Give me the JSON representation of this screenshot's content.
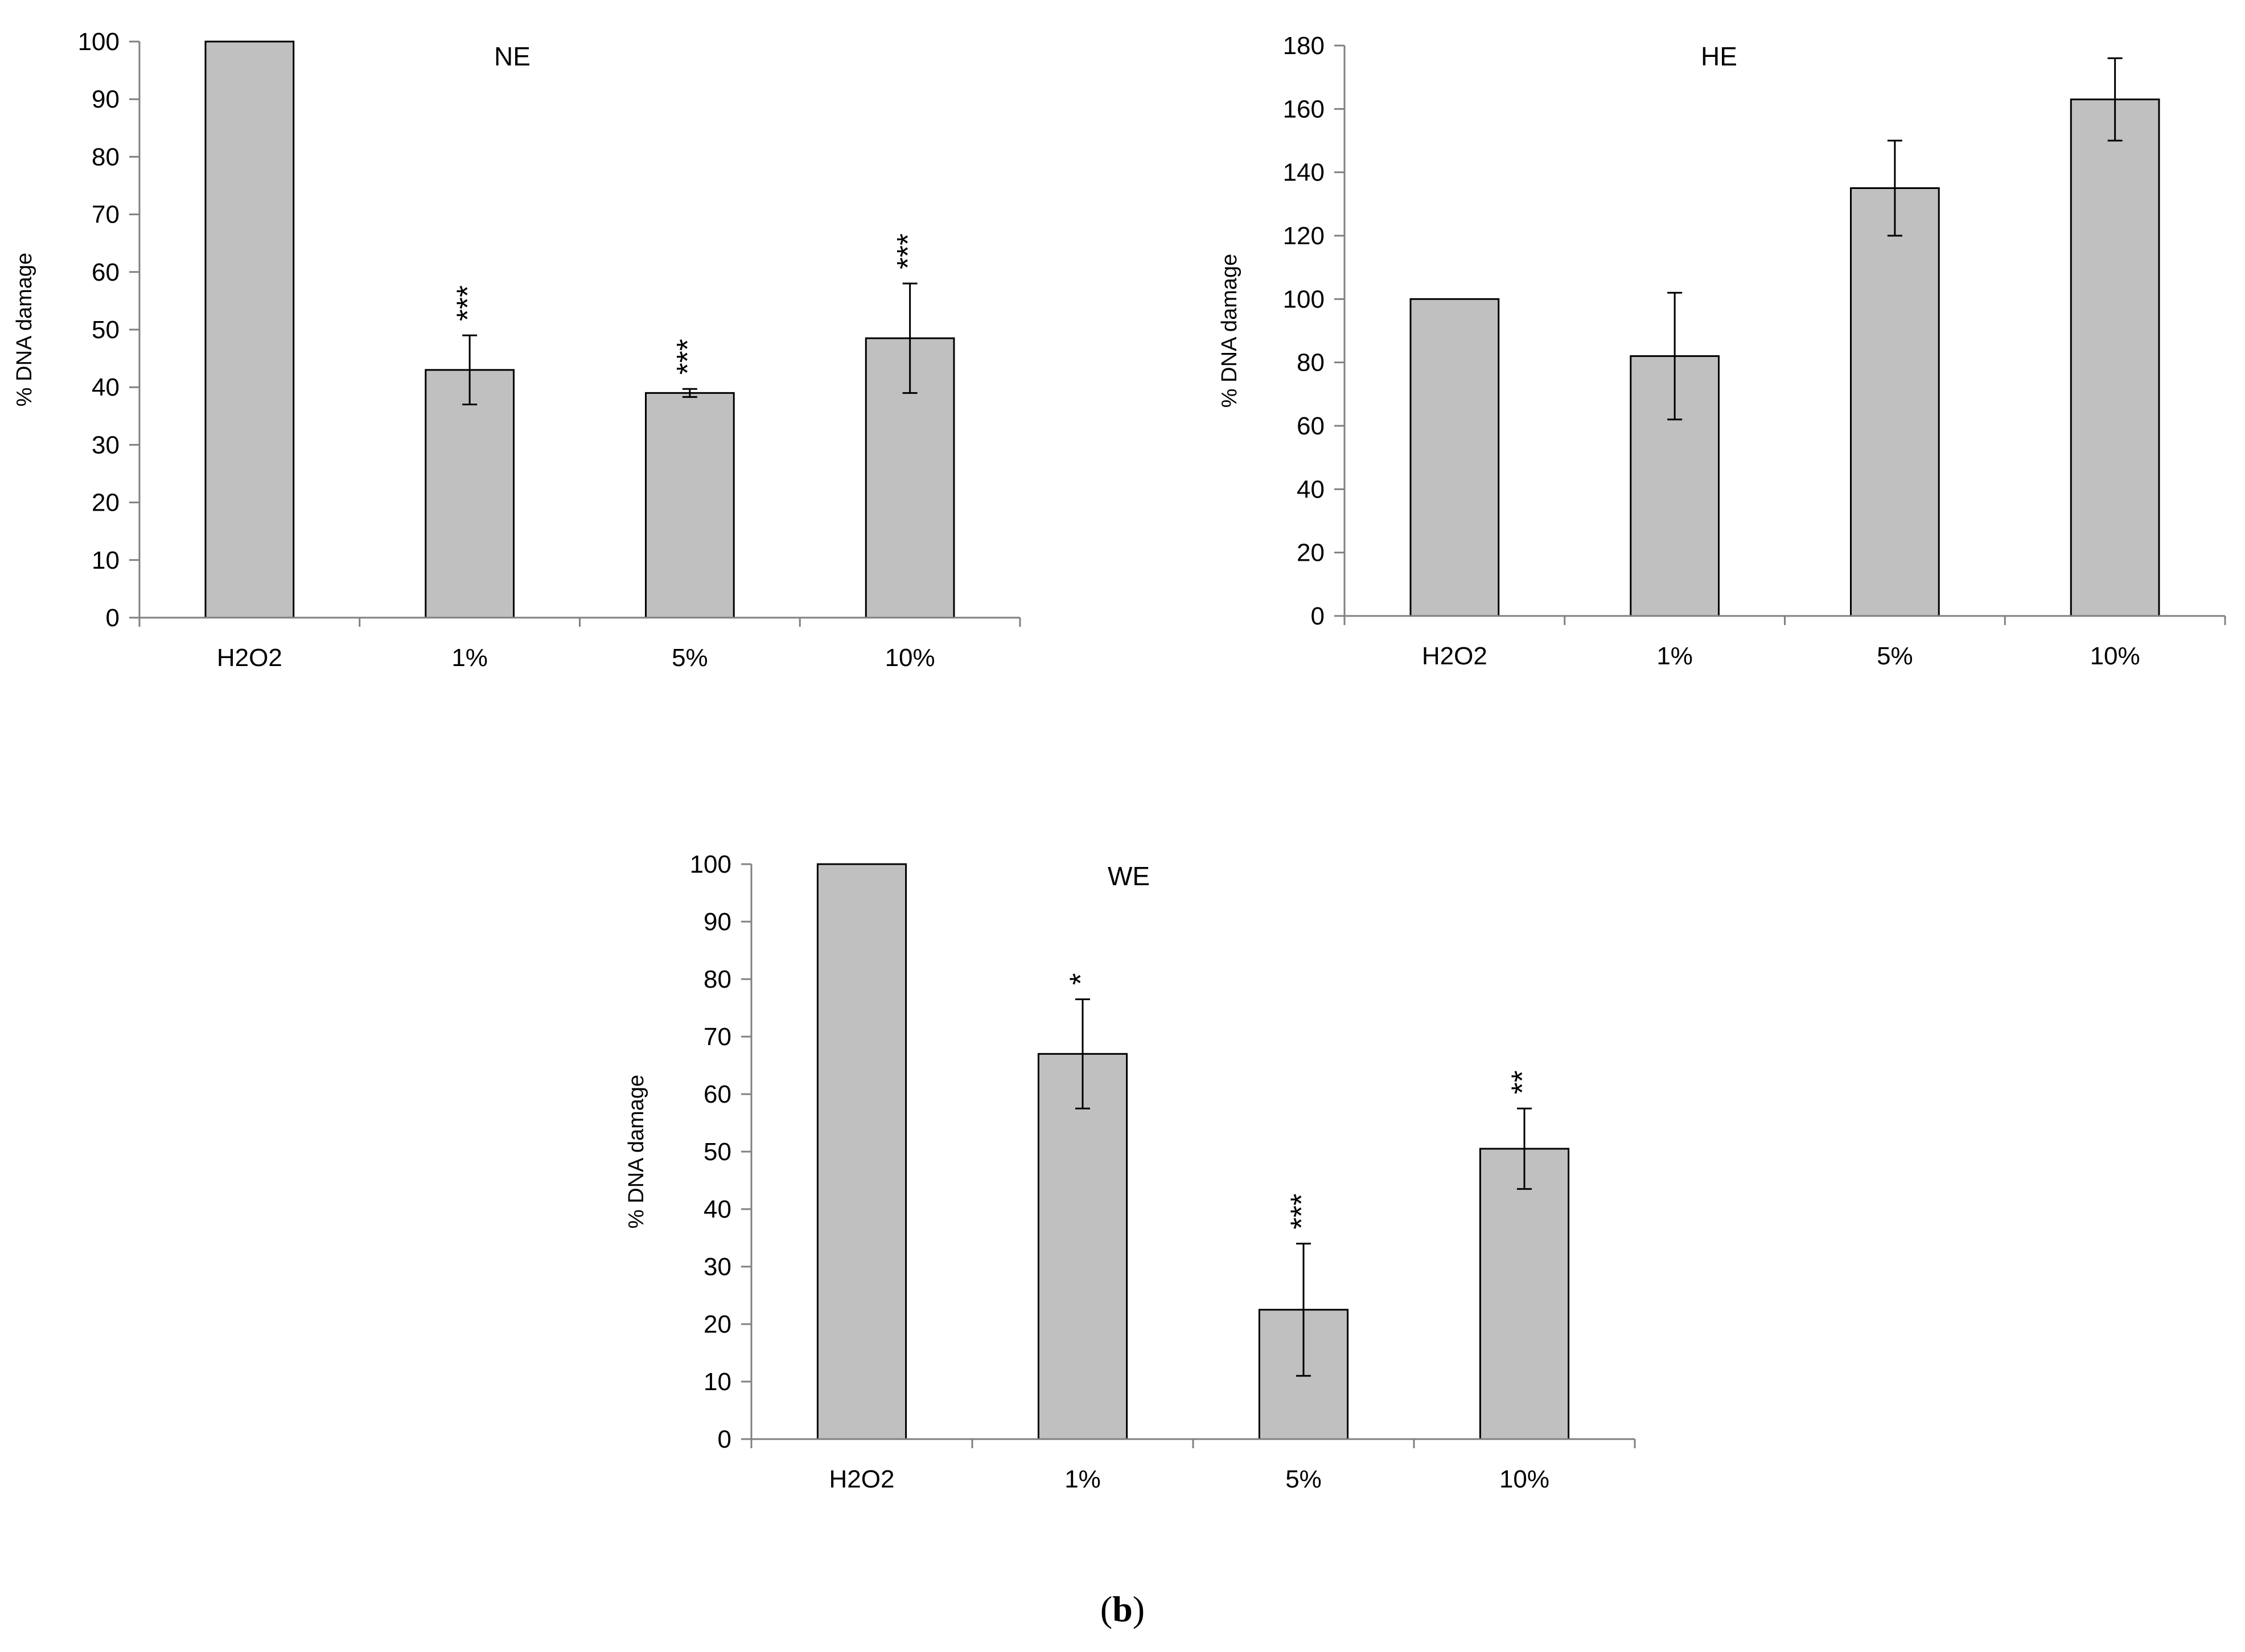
{
  "figure": {
    "caption_letter": "b",
    "caption_open": "(",
    "caption_close": ")"
  },
  "colors": {
    "bar_fill": "#c0c0c0",
    "bar_stroke": "#000000",
    "axis": "#808080",
    "text": "#000000"
  },
  "chart_data": [
    {
      "type": "bar",
      "title": "NE",
      "xlabel": "",
      "ylabel": "% DNA damage",
      "categories": [
        "H2O2",
        "1%",
        "5%",
        "10%"
      ],
      "values": [
        100,
        43,
        39,
        48.5
      ],
      "error": [
        0,
        6,
        0.7,
        9.5
      ],
      "significance": [
        "",
        "***",
        "***",
        "***"
      ],
      "ylim": [
        0,
        100
      ],
      "yticks": [
        0,
        10,
        20,
        30,
        40,
        50,
        60,
        70,
        80,
        90,
        100
      ],
      "grid": false,
      "legend": "none"
    },
    {
      "type": "bar",
      "title": "HE",
      "xlabel": "",
      "ylabel": "% DNA damage",
      "categories": [
        "H2O2",
        "1%",
        "5%",
        "10%"
      ],
      "values": [
        100,
        82,
        135,
        163
      ],
      "error": [
        0,
        20,
        15,
        13
      ],
      "significance": [
        "",
        "",
        "",
        ""
      ],
      "ylim": [
        0,
        180
      ],
      "yticks": [
        0,
        20,
        40,
        60,
        80,
        100,
        120,
        140,
        160,
        180
      ],
      "grid": false,
      "legend": "none"
    },
    {
      "type": "bar",
      "title": "WE",
      "xlabel": "",
      "ylabel": "% DNA damage",
      "categories": [
        "H2O2",
        "1%",
        "5%",
        "10%"
      ],
      "values": [
        100,
        67,
        22.5,
        50.5
      ],
      "error": [
        0,
        9.5,
        11.5,
        7
      ],
      "significance": [
        "",
        "*",
        "***",
        "**"
      ],
      "ylim": [
        0,
        100
      ],
      "yticks": [
        0,
        10,
        20,
        30,
        40,
        50,
        60,
        70,
        80,
        90,
        100
      ],
      "grid": false,
      "legend": "none"
    }
  ]
}
